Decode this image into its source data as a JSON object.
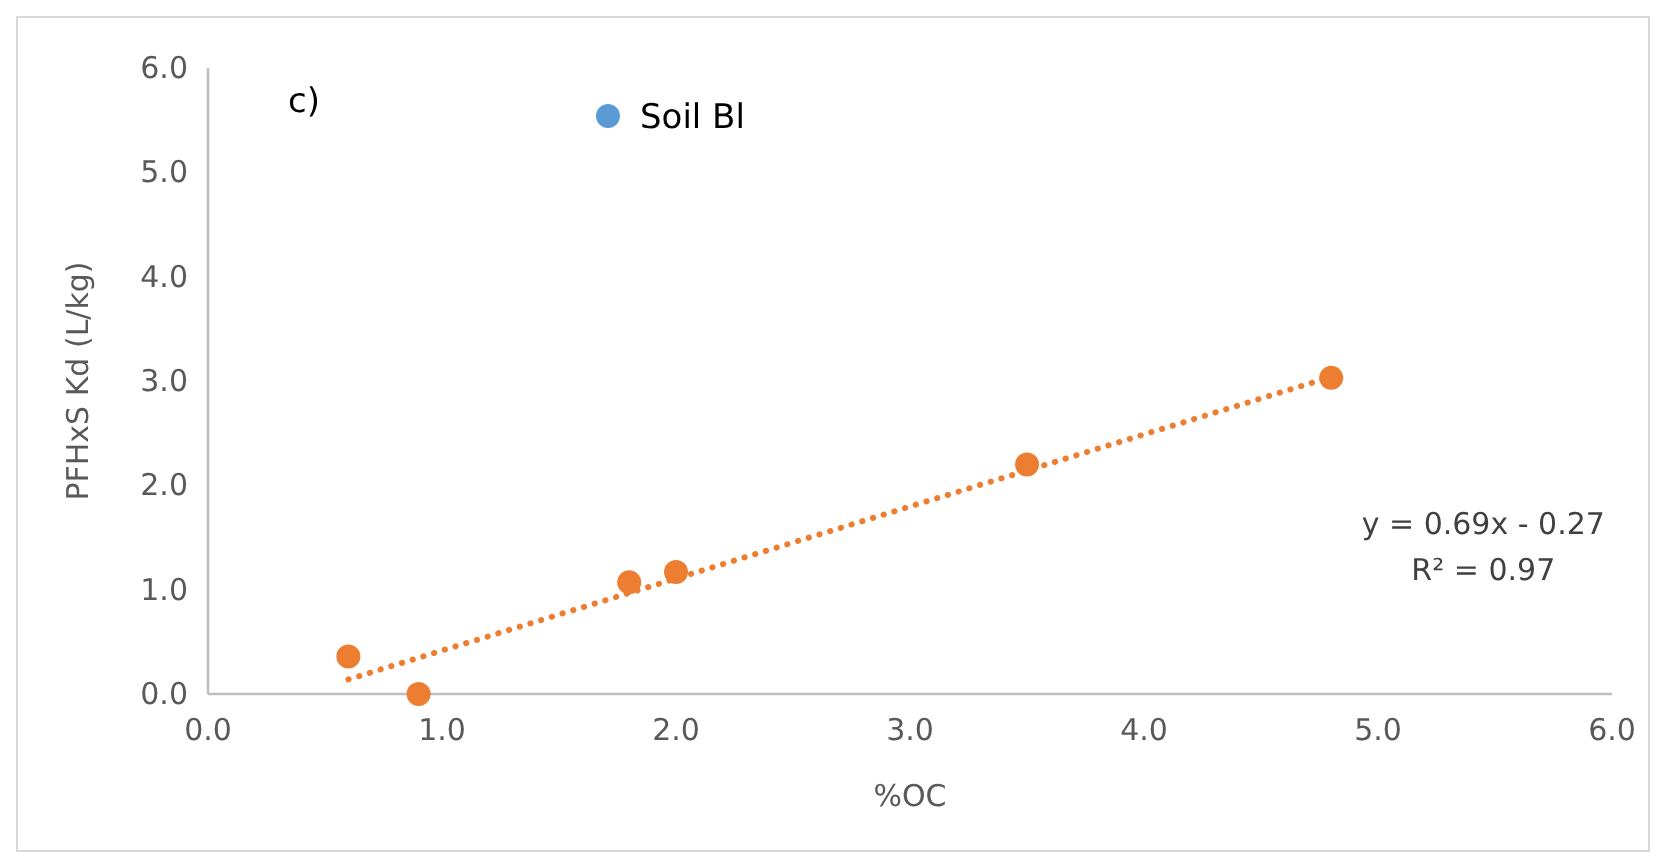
{
  "chart_data": {
    "type": "scatter",
    "xlabel": "%OC",
    "ylabel": "PFHxS Kd (L/kg)",
    "xlim": [
      0,
      6
    ],
    "ylim": [
      0,
      6
    ],
    "xticks": [
      {
        "value": 0,
        "label": "0.0"
      },
      {
        "value": 1,
        "label": "1.0"
      },
      {
        "value": 2,
        "label": "2.0"
      },
      {
        "value": 3,
        "label": "3.0"
      },
      {
        "value": 4,
        "label": "4.0"
      },
      {
        "value": 5,
        "label": "5.0"
      },
      {
        "value": 6,
        "label": "6.0"
      }
    ],
    "yticks": [
      {
        "value": 0,
        "label": "0.0"
      },
      {
        "value": 1,
        "label": "1.0"
      },
      {
        "value": 2,
        "label": "2.0"
      },
      {
        "value": 3,
        "label": "3.0"
      },
      {
        "value": 4,
        "label": "4.0"
      },
      {
        "value": 5,
        "label": "5.0"
      },
      {
        "value": 6,
        "label": "6.0"
      }
    ],
    "grid": false,
    "legend": "top",
    "marker": "circle",
    "series": [
      {
        "name": "Soil Bl",
        "color": "#5b9bd5"
      },
      {
        "color": "#ed7d31",
        "x": [
          0.6,
          0.9,
          1.8,
          2.0,
          3.5,
          4.8
        ],
        "values": [
          0.36,
          0.0,
          1.07,
          1.17,
          2.2,
          3.03
        ]
      },
      {
        "type": "line",
        "line_style": "dotted",
        "marker": "none",
        "color": "#ed7d31",
        "x": [
          0.6,
          4.8
        ],
        "values": [
          0.14,
          3.04
        ]
      }
    ],
    "annotations": [
      "c)",
      "y = 0.69x - 0.27",
      "R² = 0.97"
    ]
  }
}
